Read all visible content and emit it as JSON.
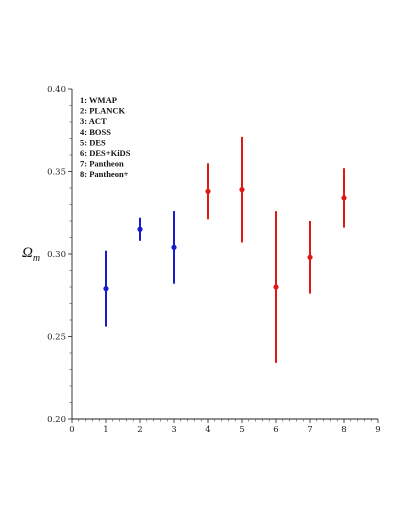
{
  "chart_data": {
    "type": "scatter",
    "title": "",
    "xlabel": "",
    "ylabel": "Ω",
    "ylabel_subscript": "m",
    "xlim": [
      0,
      9
    ],
    "ylim": [
      0.2,
      0.4
    ],
    "x_ticks": [
      "0",
      "1",
      "2",
      "3",
      "4",
      "5",
      "6",
      "7",
      "8",
      "9"
    ],
    "y_ticks": [
      "0.20",
      "0.25",
      "0.30",
      "0.35",
      "0.40"
    ],
    "grid": false,
    "legend_placement": "top-left",
    "legend_entries": [
      "1: WMAP",
      "2: PLANCK",
      "3: ACT",
      "4: BOSS",
      "5: DES",
      "6: DES+KiDS",
      "7: Pantheon",
      "8: Pantheon+"
    ],
    "series": [
      {
        "color": "#1a1acd",
        "points": [
          {
            "x": 1,
            "y": 0.279,
            "y_low": 0.256,
            "y_high": 0.302
          },
          {
            "x": 2,
            "y": 0.315,
            "y_low": 0.308,
            "y_high": 0.322
          },
          {
            "x": 3,
            "y": 0.304,
            "y_low": 0.282,
            "y_high": 0.326
          }
        ]
      },
      {
        "color": "#e01818",
        "points": [
          {
            "x": 4,
            "y": 0.338,
            "y_low": 0.321,
            "y_high": 0.355
          },
          {
            "x": 5,
            "y": 0.339,
            "y_low": 0.307,
            "y_high": 0.371
          },
          {
            "x": 6,
            "y": 0.28,
            "y_low": 0.234,
            "y_high": 0.326
          },
          {
            "x": 7,
            "y": 0.298,
            "y_low": 0.276,
            "y_high": 0.32
          },
          {
            "x": 8,
            "y": 0.334,
            "y_low": 0.316,
            "y_high": 0.352
          }
        ]
      }
    ]
  }
}
